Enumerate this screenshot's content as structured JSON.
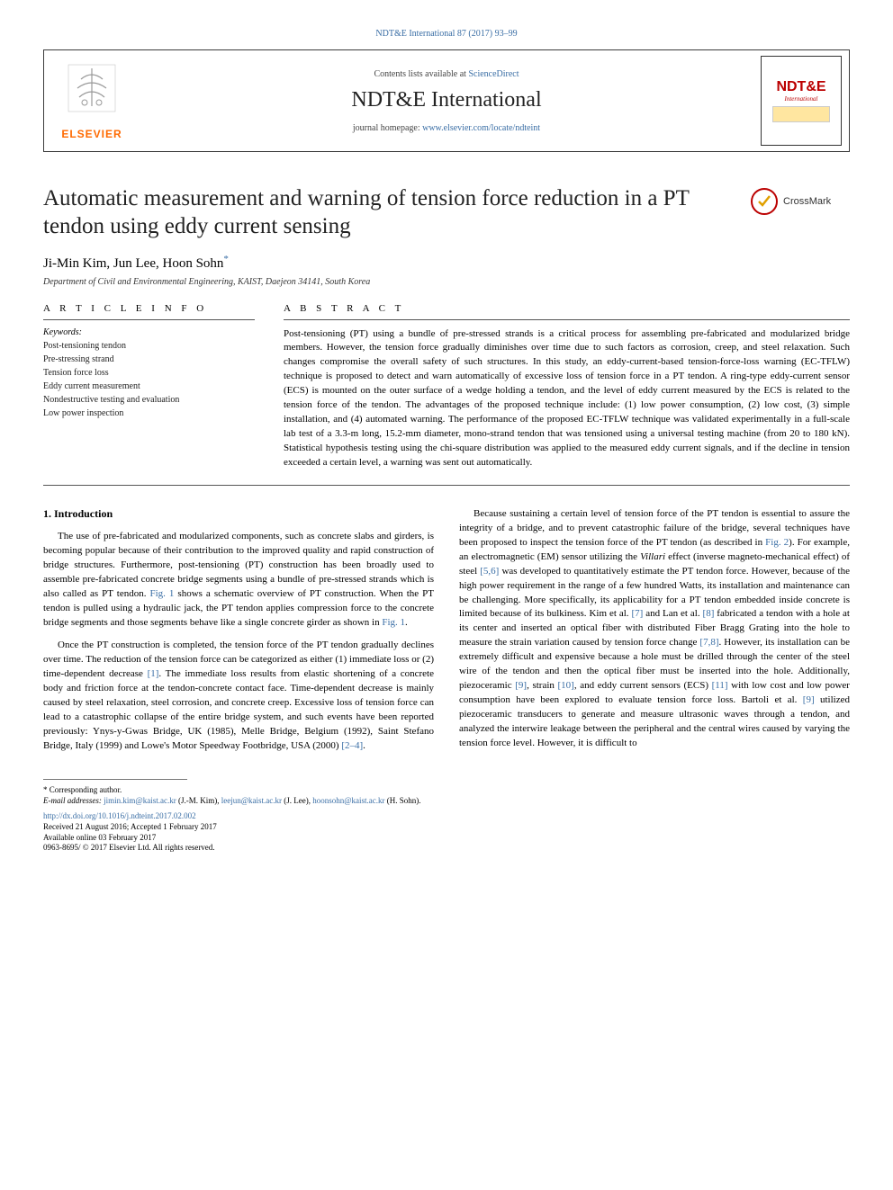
{
  "top_ref": "NDT&E International 87 (2017) 93–99",
  "header": {
    "contents_line_pre": "Contents lists available at ",
    "contents_line_link": "ScienceDirect",
    "journal_title": "NDT&E International",
    "homepage_pre": "journal homepage: ",
    "homepage_link": "www.elsevier.com/locate/ndteint",
    "elsevier_label": "ELSEVIER",
    "ndt_logo_main": "NDT&E",
    "ndt_logo_sub": "International"
  },
  "crossmark_label": "CrossMark",
  "paper_title": "Automatic measurement and warning of tension force reduction in a PT tendon using eddy current sensing",
  "authors_html": "Ji-Min Kim, Jun Lee, Hoon Sohn",
  "author_marker": "*",
  "affiliation": "Department of Civil and Environmental Engineering, KAIST, Daejeon 34141, South Korea",
  "article_info_heading": "A R T I C L E  I N F O",
  "abstract_heading": "A B S T R A C T",
  "keywords_label": "Keywords:",
  "keywords": [
    "Post-tensioning tendon",
    "Pre-stressing strand",
    "Tension force loss",
    "Eddy current measurement",
    "Nondestructive testing and evaluation",
    "Low power inspection"
  ],
  "abstract_text": "Post-tensioning (PT) using a bundle of pre-stressed strands is a critical process for assembling pre-fabricated and modularized bridge members. However, the tension force gradually diminishes over time due to such factors as corrosion, creep, and steel relaxation. Such changes compromise the overall safety of such structures. In this study, an eddy-current-based tension-force-loss warning (EC-TFLW) technique is proposed to detect and warn automatically of excessive loss of tension force in a PT tendon. A ring-type eddy-current sensor (ECS) is mounted on the outer surface of a wedge holding a tendon, and the level of eddy current measured by the ECS is related to the tension force of the tendon. The advantages of the proposed technique include: (1) low power consumption, (2) low cost, (3) simple installation, and (4) automated warning. The performance of the proposed EC-TFLW technique was validated experimentally in a full-scale lab test of a 3.3-m long, 15.2-mm diameter, mono-strand tendon that was tensioned using a universal testing machine (from 20 to 180 kN). Statistical hypothesis testing using the chi-square distribution was applied to the measured eddy current signals, and if the decline in tension exceeded a certain level, a warning was sent out automatically.",
  "intro_heading": "1. Introduction",
  "body": {
    "left": [
      "The use of pre-fabricated and modularized components, such as concrete slabs and girders, is becoming popular because of their contribution to the improved quality and rapid construction of bridge structures. Furthermore, post-tensioning (PT) construction has been broadly used to assemble pre-fabricated concrete bridge segments using a bundle of pre-stressed strands which is also called as PT tendon. <span class=\"ref\">Fig. 1</span> shows a schematic overview of PT construction. When the PT tendon is pulled using a hydraulic jack, the PT tendon applies compression force to the concrete bridge segments and those segments behave like a single concrete girder as shown in <span class=\"ref\">Fig. 1</span>.",
      "Once the PT construction is completed, the tension force of the PT tendon gradually declines over time. The reduction of the tension force can be categorized as either (1) immediate loss or (2) time-dependent decrease <span class=\"ref\">[1]</span>. The immediate loss results from elastic shortening of a concrete body and friction force at the tendon-concrete contact face. Time-dependent decrease is mainly caused by steel relaxation, steel corrosion, and concrete creep. Excessive loss of tension force can lead to a catastrophic collapse of the entire bridge system, and such events have been reported previously: Ynys-y-Gwas Bridge, UK (1985), Melle Bridge, Belgium (1992), Saint Stefano Bridge, Italy (1999) and Lowe's Motor Speedway Footbridge, USA (2000) <span class=\"ref\">[2–4]</span>."
    ],
    "right": [
      "Because sustaining a certain level of tension force of the PT tendon is essential to assure the integrity of a bridge, and to prevent catastrophic failure of the bridge, several techniques have been proposed to inspect the tension force of the PT tendon (as described in <span class=\"ref\">Fig. 2</span>). For example, an electromagnetic (EM) sensor utilizing the <span class=\"ital\">Villari</span> effect (inverse magneto-mechanical effect) of steel <span class=\"ref\">[5,6]</span> was developed to quantitatively estimate the PT tendon force. However, because of the high power requirement in the range of a few hundred Watts, its installation and maintenance can be challenging. More specifically, its applicability for a PT tendon embedded inside concrete is limited because of its bulkiness. Kim et al. <span class=\"ref\">[7]</span> and Lan et al. <span class=\"ref\">[8]</span> fabricated a tendon with a hole at its center and inserted an optical fiber with distributed Fiber Bragg Grating into the hole to measure the strain variation caused by tension force change <span class=\"ref\">[7,8]</span>. However, its installation can be extremely difficult and expensive because a hole must be drilled through the center of the steel wire of the tendon and then the optical fiber must be inserted into the hole. Additionally, piezoceramic <span class=\"ref\">[9]</span>, strain <span class=\"ref\">[10]</span>, and eddy current sensors (ECS) <span class=\"ref\">[11]</span> with low cost and low power consumption have been explored to evaluate tension force loss. Bartoli et al. <span class=\"ref\">[9]</span> utilized piezoceramic transducers to generate and measure ultrasonic waves through a tendon, and analyzed the interwire leakage between the peripheral and the central wires caused by varying the tension force level. However, it is difficult to"
    ]
  },
  "footnote": {
    "corr": "* Corresponding author.",
    "email_label": "E-mail addresses: ",
    "emails": [
      {
        "addr": "jimin.kim@kaist.ac.kr",
        "who": " (J.-M. Kim), "
      },
      {
        "addr": "leejun@kaist.ac.kr",
        "who": " (J. Lee), "
      },
      {
        "addr": "hoonsohn@kaist.ac.kr",
        "who": " (H. Sohn)."
      }
    ]
  },
  "doi": {
    "url": "http://dx.doi.org/10.1016/j.ndteint.2017.02.002",
    "received": "Received 21 August 2016; Accepted 1 February 2017",
    "available": "Available online 03 February 2017",
    "copyright": "0963-8695/ © 2017 Elsevier Ltd. All rights reserved."
  },
  "colors": {
    "link": "#3a6ea5",
    "elsevier_orange": "#ff6a00",
    "ndt_red": "#b00000",
    "rule_dark": "#444444"
  }
}
